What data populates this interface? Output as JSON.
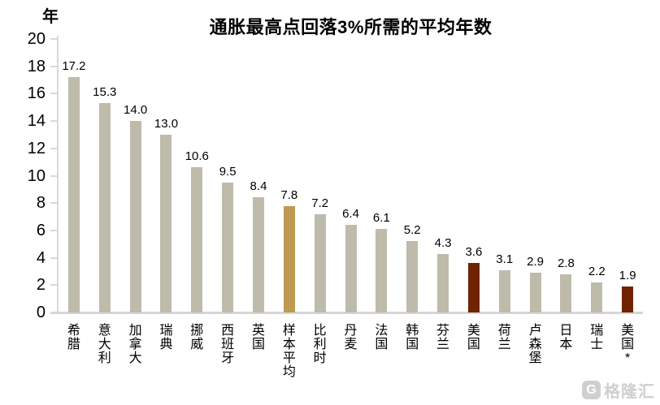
{
  "page": {
    "background_color": "#ffffff",
    "text_color": "#000000",
    "axis_color": "#d9d9d9"
  },
  "chart_data": {
    "type": "bar",
    "title": "通胀最高点回落3%所需的平均年数",
    "y_axis_label": "年",
    "xlabel": "",
    "ylabel": "年",
    "ylim": [
      0,
      20
    ],
    "y_ticks": [
      20,
      18,
      16,
      14,
      12,
      10,
      8,
      6,
      4,
      2,
      0
    ],
    "grid": false,
    "legend": "none",
    "categories": [
      "希腊",
      "意大利",
      "加拿大",
      "瑞典",
      "挪威",
      "西班牙",
      "英国",
      "样本平均",
      "比利时",
      "丹麦",
      "法国",
      "韩国",
      "芬兰",
      "美国",
      "荷兰",
      "卢森堡",
      "日本",
      "瑞士",
      "美国*"
    ],
    "values": [
      17.2,
      15.3,
      14.0,
      13.0,
      10.6,
      9.5,
      8.4,
      7.8,
      7.2,
      6.4,
      6.1,
      5.2,
      4.3,
      3.6,
      3.1,
      2.9,
      2.8,
      2.2,
      1.9
    ],
    "value_labels": [
      "17.2",
      "15.3",
      "14.0",
      "13.0",
      "10.6",
      "9.5",
      "8.4",
      "7.8",
      "7.2",
      "6.4",
      "6.1",
      "5.2",
      "4.3",
      "3.6",
      "3.1",
      "2.9",
      "2.8",
      "2.2",
      "1.9"
    ],
    "colors": {
      "default_bar": "#bebbab",
      "highlight_gold": "#be9a52",
      "highlight_red": "#702300"
    },
    "highlight_gold_indices": [
      7
    ],
    "highlight_red_indices": [
      13,
      18
    ]
  },
  "watermark": {
    "icon_letter": "G",
    "text": "格隆汇",
    "color": "#cfcfcf"
  }
}
